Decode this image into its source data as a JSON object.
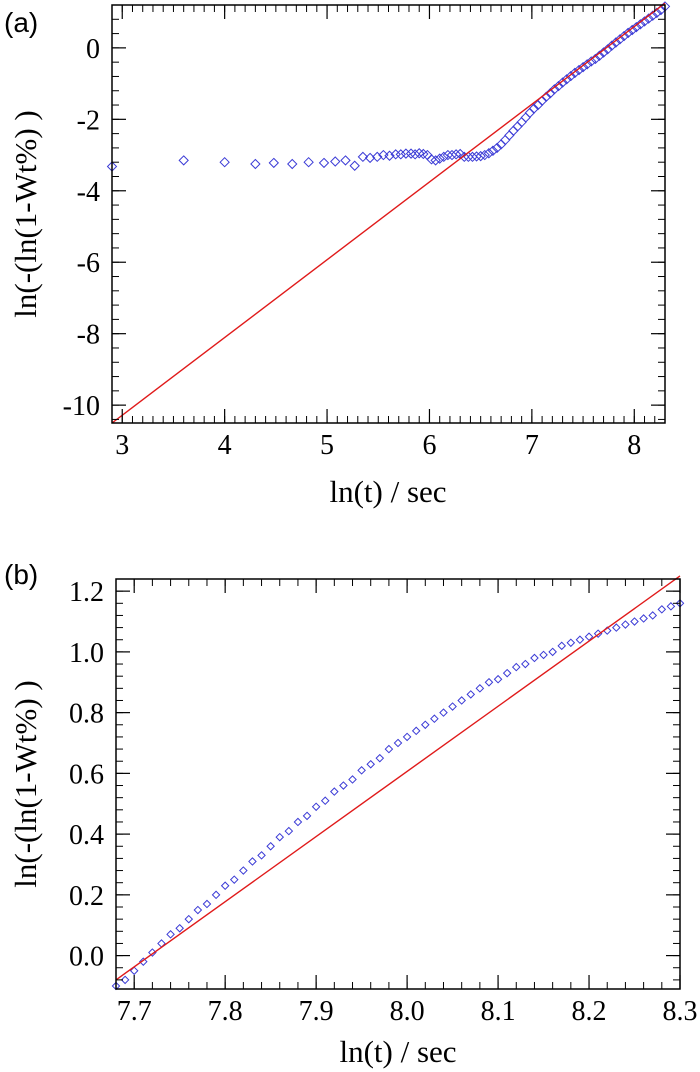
{
  "chart_data": [
    {
      "panel_label": "(a)",
      "type": "scatter",
      "xlabel": "ln(t) / sec",
      "ylabel": "ln(-(ln(1-Wt%) )",
      "xlim": [
        2.9,
        8.3
      ],
      "ylim": [
        -10.5,
        1.2
      ],
      "xticks": [
        3,
        4,
        5,
        6,
        7,
        8
      ],
      "yticks": [
        0,
        -2,
        -4,
        -6,
        -8,
        -10
      ],
      "grid": false,
      "series": [
        {
          "kind": "points",
          "marker": "diamond",
          "color": "#3b3bd6",
          "x": [
            2.9,
            3.6,
            4.0,
            4.3,
            4.48,
            4.66,
            4.82,
            4.97,
            5.08,
            5.18,
            5.27,
            5.35,
            5.42,
            5.49,
            5.55,
            5.61,
            5.67,
            5.72,
            5.77,
            5.82,
            5.86,
            5.9,
            5.94,
            5.98,
            6.02,
            6.06,
            6.1,
            6.14,
            6.18,
            6.22,
            6.26,
            6.3,
            6.34,
            6.38,
            6.42,
            6.46,
            6.5,
            6.54,
            6.58,
            6.62,
            6.66,
            6.7,
            6.74,
            6.78,
            6.82,
            6.86,
            6.9,
            6.94,
            6.98,
            7.02,
            7.06,
            7.1,
            7.14,
            7.18,
            7.22,
            7.26,
            7.3,
            7.34,
            7.38,
            7.42,
            7.46,
            7.5,
            7.54,
            7.58,
            7.62,
            7.66,
            7.7,
            7.74,
            7.78,
            7.82,
            7.86,
            7.9,
            7.94,
            7.98,
            8.02,
            8.06,
            8.1,
            8.14,
            8.18,
            8.22,
            8.26,
            8.3
          ],
          "y": [
            -3.32,
            -3.15,
            -3.2,
            -3.25,
            -3.22,
            -3.25,
            -3.2,
            -3.22,
            -3.18,
            -3.15,
            -3.3,
            -3.05,
            -3.08,
            -3.05,
            -3.0,
            -3.02,
            -2.98,
            -2.98,
            -2.96,
            -2.96,
            -2.98,
            -2.95,
            -2.97,
            -3.0,
            -3.12,
            -3.15,
            -3.1,
            -3.05,
            -3.0,
            -3.0,
            -2.98,
            -2.97,
            -3.05,
            -3.05,
            -3.05,
            -3.04,
            -3.03,
            -3.0,
            -2.95,
            -2.88,
            -2.8,
            -2.7,
            -2.58,
            -2.45,
            -2.32,
            -2.2,
            -2.08,
            -1.95,
            -1.82,
            -1.7,
            -1.6,
            -1.48,
            -1.37,
            -1.27,
            -1.16,
            -1.07,
            -0.97,
            -0.88,
            -0.79,
            -0.7,
            -0.62,
            -0.54,
            -0.46,
            -0.38,
            -0.31,
            -0.22,
            -0.13,
            -0.04,
            0.06,
            0.15,
            0.24,
            0.33,
            0.42,
            0.5,
            0.58,
            0.66,
            0.74,
            0.82,
            0.9,
            0.98,
            1.06,
            1.16
          ]
        },
        {
          "kind": "line",
          "color": "#e01a1a",
          "x": [
            2.9,
            8.3
          ],
          "y": [
            -10.5,
            1.25
          ]
        }
      ]
    },
    {
      "panel_label": "(b)",
      "type": "scatter",
      "xlabel": "ln(t) / sec",
      "ylabel": "ln(-(ln(1-Wt%) )",
      "xlim": [
        7.68,
        8.3
      ],
      "ylim": [
        -0.11,
        1.24
      ],
      "xticks": [
        "7.7",
        "7.8",
        "7.9",
        "8.0",
        "8.1",
        "8.2",
        "8.3"
      ],
      "yticks": [
        "1.2",
        "1.0",
        "0.8",
        "0.6",
        "0.4",
        "0.2",
        "0.0"
      ],
      "grid": false,
      "series": [
        {
          "kind": "points",
          "marker": "diamond",
          "color": "#3b3bd6",
          "x": [
            7.68,
            7.69,
            7.7,
            7.71,
            7.72,
            7.73,
            7.74,
            7.75,
            7.76,
            7.77,
            7.78,
            7.79,
            7.8,
            7.81,
            7.82,
            7.83,
            7.84,
            7.85,
            7.86,
            7.87,
            7.88,
            7.89,
            7.9,
            7.91,
            7.92,
            7.93,
            7.94,
            7.95,
            7.96,
            7.97,
            7.98,
            7.99,
            8.0,
            8.01,
            8.02,
            8.03,
            8.04,
            8.05,
            8.06,
            8.07,
            8.08,
            8.09,
            8.1,
            8.11,
            8.12,
            8.13,
            8.14,
            8.15,
            8.16,
            8.17,
            8.18,
            8.19,
            8.2,
            8.21,
            8.22,
            8.23,
            8.24,
            8.25,
            8.26,
            8.27,
            8.28,
            8.29,
            8.3
          ],
          "y": [
            -0.1,
            -0.08,
            -0.05,
            -0.02,
            0.01,
            0.04,
            0.07,
            0.09,
            0.12,
            0.15,
            0.17,
            0.2,
            0.23,
            0.25,
            0.28,
            0.31,
            0.33,
            0.36,
            0.39,
            0.41,
            0.44,
            0.46,
            0.49,
            0.51,
            0.54,
            0.56,
            0.58,
            0.61,
            0.63,
            0.65,
            0.68,
            0.7,
            0.72,
            0.74,
            0.76,
            0.78,
            0.8,
            0.82,
            0.84,
            0.86,
            0.88,
            0.9,
            0.91,
            0.93,
            0.95,
            0.96,
            0.98,
            0.99,
            1.0,
            1.02,
            1.03,
            1.04,
            1.05,
            1.06,
            1.07,
            1.08,
            1.09,
            1.1,
            1.11,
            1.12,
            1.14,
            1.15,
            1.16
          ]
        },
        {
          "kind": "line",
          "color": "#e01a1a",
          "x": [
            7.68,
            8.3
          ],
          "y": [
            -0.08,
            1.25
          ]
        }
      ]
    }
  ]
}
